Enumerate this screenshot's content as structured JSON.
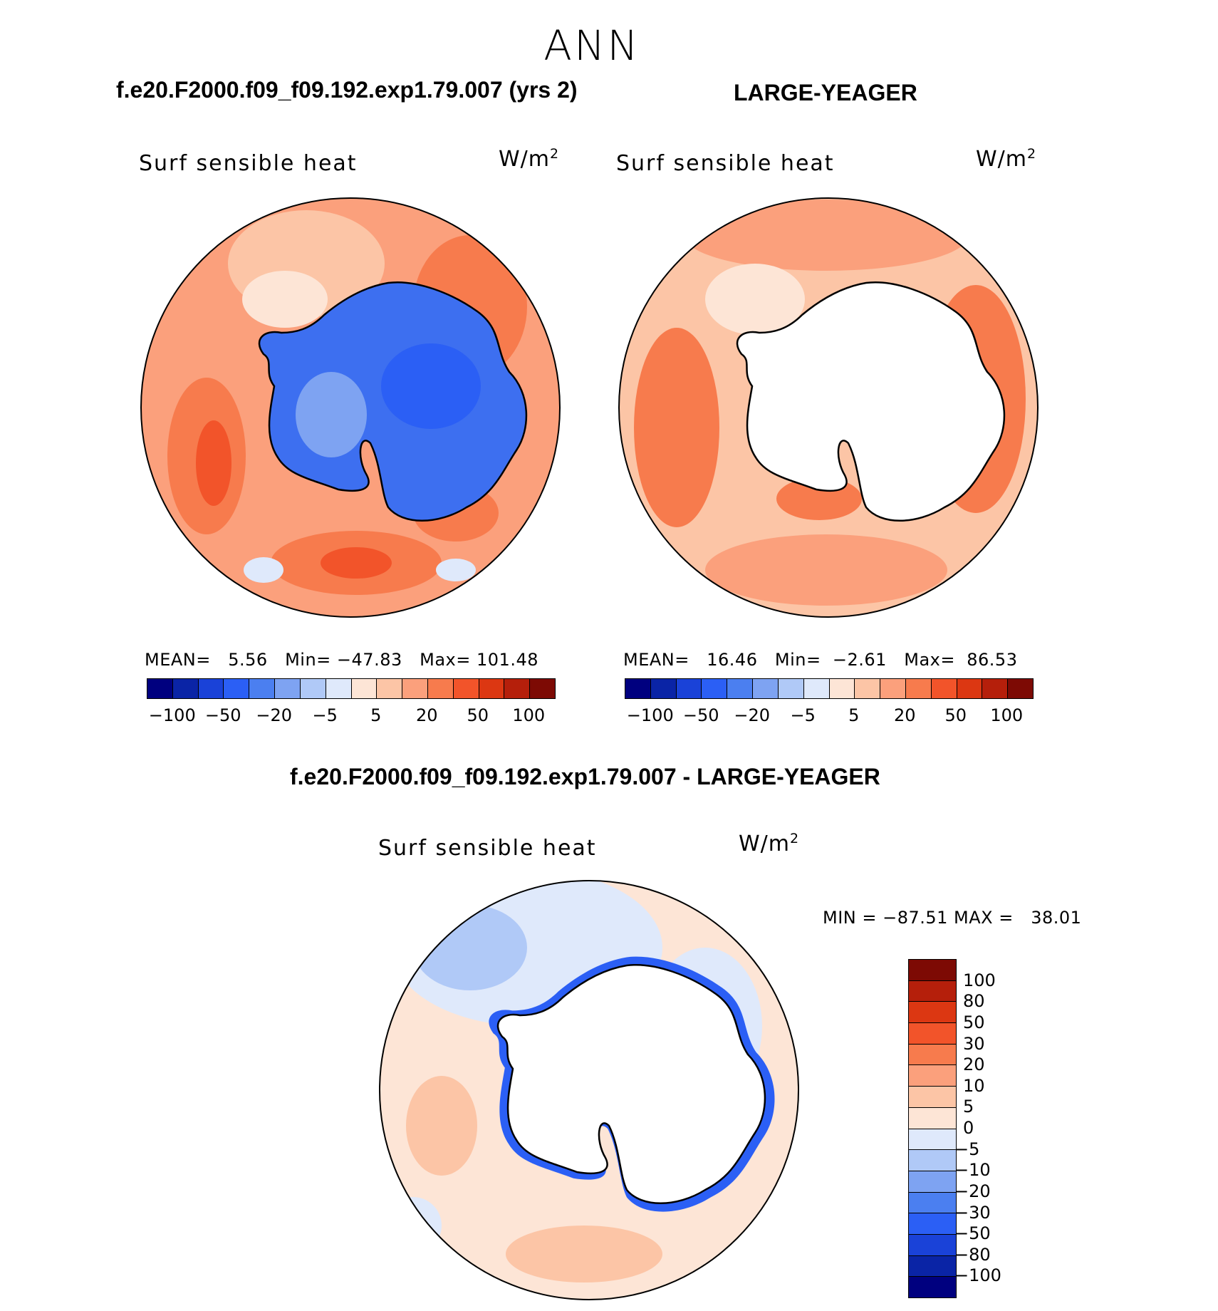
{
  "figure": {
    "title": "ANN"
  },
  "panels": [
    {
      "case": "f.e20.F2000.f09_f09.192.exp1.79.007 (yrs 2)",
      "variable": "Surf sensible heat",
      "units_base": "W/m",
      "units_sup": "2",
      "stats": {
        "mean_label": "MEAN=",
        "mean": "5.56",
        "min_label": "Min=",
        "min": "−47.83",
        "max_label": "Max=",
        "max": "101.48"
      }
    },
    {
      "case": "LARGE-YEAGER",
      "variable": "Surf sensible heat",
      "units_base": "W/m",
      "units_sup": "2",
      "stats": {
        "mean_label": "MEAN=",
        "mean": "16.46",
        "min_label": "Min=",
        "min": "−2.61",
        "max_label": "Max=",
        "max": "86.53"
      }
    },
    {
      "case": "f.e20.F2000.f09_f09.192.exp1.79.007 - LARGE-YEAGER",
      "variable": "Surf sensible heat",
      "units_base": "W/m",
      "units_sup": "2",
      "stats_text": "MIN = −87.51 MAX =   38.01"
    }
  ],
  "colorbar_top": {
    "colors": [
      "#00007f",
      "#0a24a6",
      "#1a42d8",
      "#2b5ff5",
      "#4b7ff0",
      "#7ea3f2",
      "#b0c9f7",
      "#dfe9fb",
      "#fde5d6",
      "#fcc5a6",
      "#fba07c",
      "#f77b4d",
      "#f2542a",
      "#dc3712",
      "#b51f0b",
      "#7d0a04"
    ],
    "ticks": [
      "−100",
      "−50",
      "−20",
      "−5",
      "5",
      "20",
      "50",
      "100"
    ]
  },
  "colorbar_diff": {
    "colors_top_to_bottom": [
      "#7d0a04",
      "#b51f0b",
      "#dc3712",
      "#f2542a",
      "#f77b4d",
      "#fba07c",
      "#fcc5a6",
      "#fde5d6",
      "#dfe9fb",
      "#b0c9f7",
      "#7ea3f2",
      "#4b7ff0",
      "#2b5ff5",
      "#1a42d8",
      "#0a24a6",
      "#00007f"
    ],
    "labels": [
      "100",
      "80",
      "50",
      "30",
      "20",
      "10",
      "5",
      "0",
      "−5",
      "−10",
      "−20",
      "−30",
      "−50",
      "−80",
      "−100"
    ]
  },
  "palette": {
    "ocean_warm_light": "#fcc5a6",
    "ocean_warm_mid": "#fba07c",
    "ocean_warm_strong": "#f77b4d",
    "ocean_warm_deep": "#f2542a",
    "antarctica_negative": "#2b5ff5",
    "diff_pos_light": "#fde5d6",
    "diff_neg_light": "#dfe9fb",
    "diff_neg_mid": "#b0c9f7",
    "land_missing": "#ffffff"
  }
}
